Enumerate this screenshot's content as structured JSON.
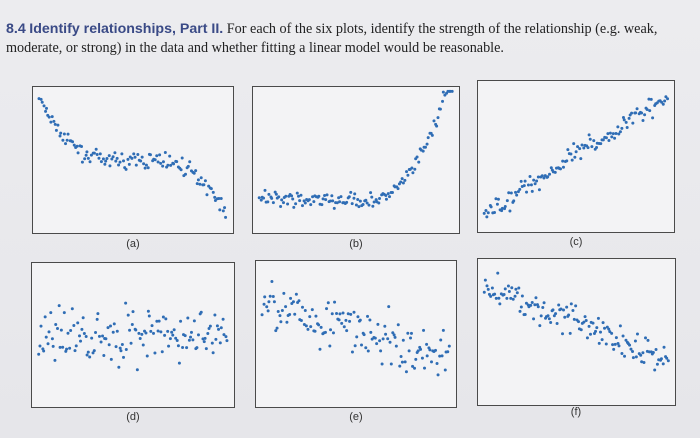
{
  "problem": {
    "number": "8.4",
    "heading": "Identify relationships, Part II.",
    "body": "For each of the six plots, identify the strength of the relationship (e.g. weak, moderate, or strong) in the data and whether fitting a linear model would be reasonable."
  },
  "colors": {
    "points": "#2f6db5",
    "frame": "#4a4a4a",
    "heading": "#3a4a86"
  },
  "plots": [
    {
      "label": "(a)"
    },
    {
      "label": "(b)"
    },
    {
      "label": "(c)"
    },
    {
      "label": "(d)"
    },
    {
      "label": "(e)"
    },
    {
      "label": "(f)"
    }
  ]
}
